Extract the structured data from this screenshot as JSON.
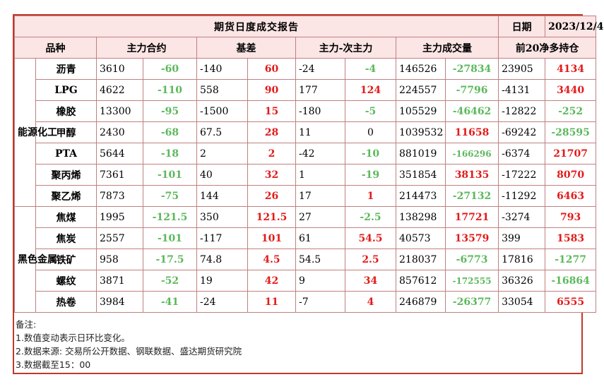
{
  "header": {
    "title": "期货日度成交报告",
    "date_label": "日期",
    "date_value": "2023/12/4"
  },
  "columns": {
    "variety": "品种",
    "main_contract": "主力合约",
    "basis": "基差",
    "spread": "主力-次主力",
    "volume": "主力成交量",
    "top20": "前20净多持仓"
  },
  "sectors": [
    {
      "name": "能源化工",
      "rows": [
        {
          "name": "沥青",
          "price": "3610",
          "price_chg": "-60",
          "basis": "-140",
          "basis_chg": "60",
          "spread": "-24",
          "spread_chg": "-4",
          "vol": "146526",
          "vol_chg": "-27834",
          "net": "23905",
          "net_chg": "4134"
        },
        {
          "name": "LPG",
          "price": "4622",
          "price_chg": "-110",
          "basis": "558",
          "basis_chg": "90",
          "spread": "177",
          "spread_chg": "124",
          "vol": "224557",
          "vol_chg": "-7796",
          "net": "-4131",
          "net_chg": "3440"
        },
        {
          "name": "橡胶",
          "price": "13300",
          "price_chg": "-95",
          "basis": "-1500",
          "basis_chg": "15",
          "spread": "-180",
          "spread_chg": "-5",
          "vol": "105529",
          "vol_chg": "-46462",
          "net": "-12822",
          "net_chg": "-252"
        },
        {
          "name": "甲醇",
          "price": "2430",
          "price_chg": "-68",
          "basis": "67.5",
          "basis_chg": "28",
          "spread": "11",
          "spread_chg": "0",
          "vol": "1039532",
          "vol_chg": "11658",
          "net": "-69242",
          "net_chg": "-28595"
        },
        {
          "name": "PTA",
          "price": "5644",
          "price_chg": "-18",
          "basis": "2",
          "basis_chg": "2",
          "spread": "-42",
          "spread_chg": "-10",
          "vol": "881019",
          "vol_chg": "-166296",
          "net": "-6374",
          "net_chg": "21707"
        },
        {
          "name": "聚丙烯",
          "price": "7361",
          "price_chg": "-101",
          "basis": "40",
          "basis_chg": "32",
          "spread": "1",
          "spread_chg": "-19",
          "vol": "351854",
          "vol_chg": "38135",
          "net": "-17222",
          "net_chg": "8070"
        },
        {
          "name": "聚乙烯",
          "price": "7873",
          "price_chg": "-75",
          "basis": "144",
          "basis_chg": "26",
          "spread": "17",
          "spread_chg": "1",
          "vol": "214473",
          "vol_chg": "-27132",
          "net": "-11292",
          "net_chg": "6463"
        }
      ]
    },
    {
      "name": "黑色金属",
      "rows": [
        {
          "name": "焦煤",
          "price": "1995",
          "price_chg": "-121.5",
          "basis": "350",
          "basis_chg": "121.5",
          "spread": "27",
          "spread_chg": "-2.5",
          "vol": "138298",
          "vol_chg": "17721",
          "net": "-3274",
          "net_chg": "793"
        },
        {
          "name": "焦炭",
          "price": "2557",
          "price_chg": "-101",
          "basis": "-117",
          "basis_chg": "101",
          "spread": "61",
          "spread_chg": "54.5",
          "vol": "40573",
          "vol_chg": "13579",
          "net": "399",
          "net_chg": "1583"
        },
        {
          "name": "铁矿",
          "price": "958",
          "price_chg": "-17.5",
          "basis": "74.8",
          "basis_chg": "4.5",
          "spread": "54.5",
          "spread_chg": "2.5",
          "vol": "218037",
          "vol_chg": "-6773",
          "net": "17816",
          "net_chg": "-1277"
        },
        {
          "name": "螺纹",
          "price": "3871",
          "price_chg": "-52",
          "basis": "19",
          "basis_chg": "42",
          "spread": "9",
          "spread_chg": "34",
          "vol": "857612",
          "vol_chg": "-172555",
          "net": "36326",
          "net_chg": "-16864"
        },
        {
          "name": "热卷",
          "price": "3984",
          "price_chg": "-41",
          "basis": "-24",
          "basis_chg": "11",
          "spread": "-7",
          "spread_chg": "4",
          "vol": "246879",
          "vol_chg": "-26377",
          "net": "33054",
          "net_chg": "6555"
        }
      ]
    }
  ],
  "notes": {
    "heading": "备注:",
    "line1": "1.数值变动表示日环比变化。",
    "line2": "2.数据来源: 交易所公开数据、钢联数据、盛达期货研究院",
    "line3": "3.数据截至15：00"
  },
  "colors": {
    "up": "#e31a1a",
    "down": "#5cb85c",
    "flat": "#000000",
    "header_bg": "#fbe5e5",
    "border": "#c0392b"
  }
}
